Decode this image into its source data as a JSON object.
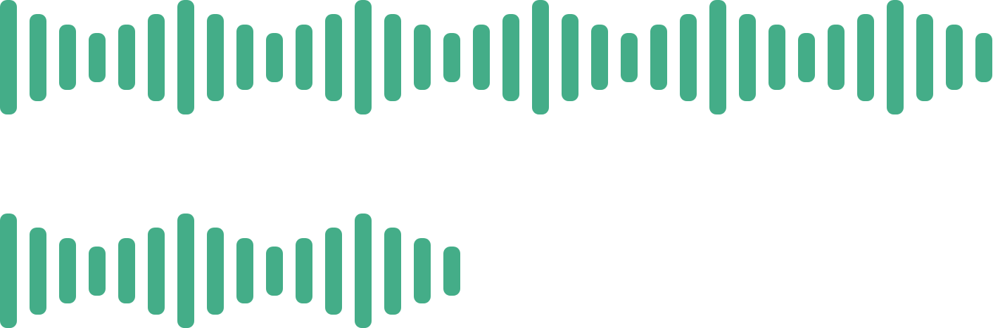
{
  "waveform": {
    "color": "#44AD88",
    "pattern_levels": [
      1.0,
      0.75,
      0.55,
      0.4,
      0.55,
      0.75
    ],
    "rows": [
      {
        "bar_count": 34
      },
      {
        "bar_count": 16
      }
    ]
  }
}
